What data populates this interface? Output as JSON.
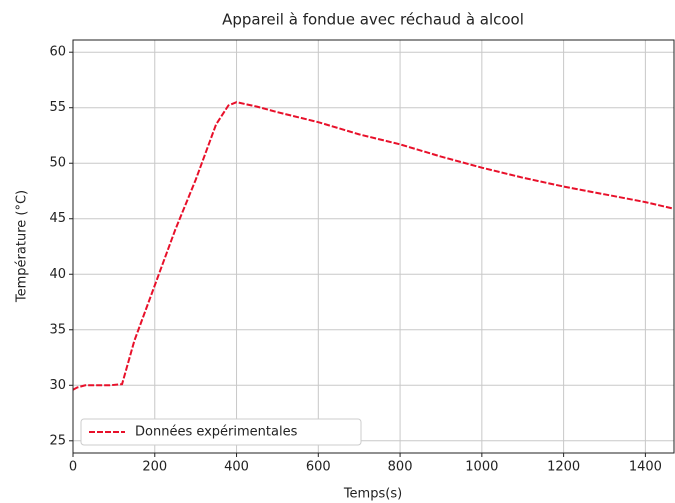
{
  "chart_data": {
    "type": "line",
    "title": "Appareil à fondue avec réchaud à alcool",
    "xlabel": "Temps(s)",
    "ylabel": "Température (°C)",
    "x": [
      0,
      10,
      30,
      60,
      90,
      120,
      150,
      200,
      250,
      300,
      350,
      380,
      400,
      450,
      500,
      600,
      700,
      800,
      900,
      1000,
      1100,
      1200,
      1300,
      1400,
      1470
    ],
    "series": [
      {
        "name": "Données expérimentales",
        "color": "#e8102a",
        "line_style": "dashed",
        "values": [
          29.6,
          29.8,
          30,
          30,
          30,
          30.1,
          34,
          39,
          44,
          48.5,
          53.5,
          55.2,
          55.5,
          55.1,
          54.6,
          53.7,
          52.6,
          51.7,
          50.6,
          49.6,
          48.7,
          47.9,
          47.2,
          46.5,
          45.9
        ]
      }
    ],
    "xlim": [
      0,
      1470
    ],
    "xticks": [
      0,
      200,
      400,
      600,
      800,
      1000,
      1200,
      1400
    ],
    "ylim": [
      23.9,
      61.1
    ],
    "yticks": [
      25,
      30,
      35,
      40,
      45,
      50,
      55,
      60
    ],
    "grid": true,
    "legend": "lower left"
  }
}
